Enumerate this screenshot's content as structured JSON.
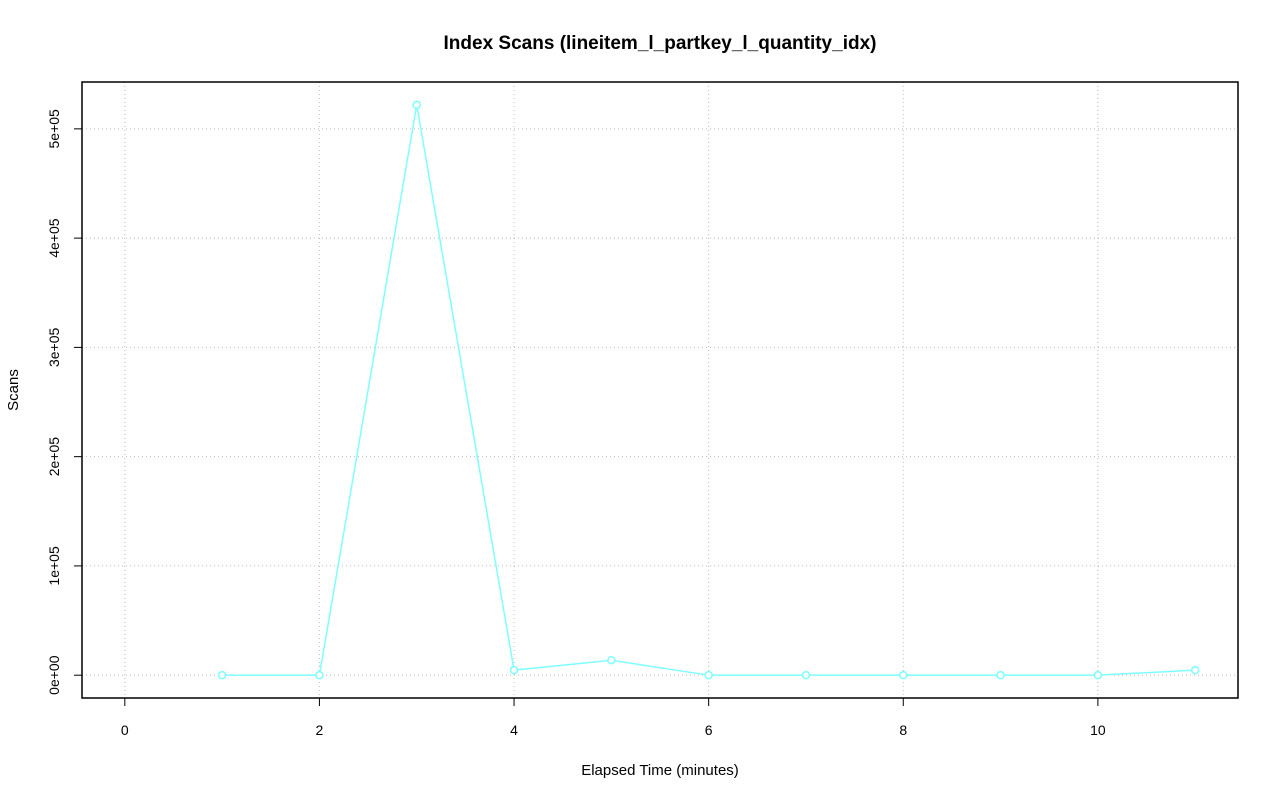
{
  "chart_data": {
    "type": "line",
    "title": "Index Scans (lineitem_l_partkey_l_quantity_idx)",
    "x_label": "Elapsed Time (minutes)",
    "y_label": "Scans",
    "x": [
      1,
      2,
      3,
      4,
      5,
      6,
      7,
      8,
      9,
      10,
      11
    ],
    "series": [
      {
        "name": "Scans",
        "color": "#7fffff",
        "values": [
          0,
          0,
          522000,
          4600,
          13700,
          0,
          0,
          0,
          0,
          0,
          4600
        ]
      }
    ],
    "xlim": [
      -0.44,
      11.44
    ],
    "xticks": [
      0,
      2,
      4,
      6,
      8,
      10
    ],
    "ylim": [
      -20880,
      542880
    ],
    "yticks": [
      {
        "value": 0,
        "label": "0e+00"
      },
      {
        "value": 100000,
        "label": "1e+05"
      },
      {
        "value": 200000,
        "label": "2e+05"
      },
      {
        "value": 300000,
        "label": "3e+05"
      },
      {
        "value": 400000,
        "label": "4e+05"
      },
      {
        "value": 500000,
        "label": "5e+05"
      }
    ],
    "grid": true
  }
}
